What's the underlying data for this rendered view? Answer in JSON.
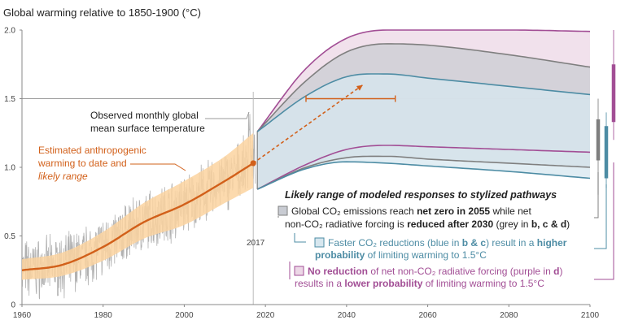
{
  "chart_data": {
    "type": "line",
    "title": "Global warming relative to 1850-1900 (°C)",
    "xlim": [
      1960,
      2100
    ],
    "ylim": [
      0,
      2.0
    ],
    "x_ticks": [
      "1960",
      "1980",
      "2000",
      "2020",
      "2040",
      "2060",
      "2080",
      "2100"
    ],
    "y_ticks": [
      "0",
      "0.5",
      "1.0",
      "1.5",
      "2.0"
    ],
    "reference_line_y": 1.5,
    "marker_year_label": "2017",
    "annotations": {
      "observed": [
        "Observed monthly global",
        "mean surface temperature"
      ],
      "estimated": [
        "Estimated anthropogenic",
        "warming to date and",
        "likely range"
      ],
      "legend_title": "Likely range of modeled responses to stylized pathways",
      "grey_line1_a": "Global CO₂ emissions reach ",
      "grey_line1_b": "net zero in 2055",
      "grey_line1_c": " while net",
      "grey_line2_a": "non-CO₂ radiative forcing is ",
      "grey_line2_b": "reduced after 2030",
      "grey_line2_c": " (grey in ",
      "grey_line2_d": "b, c & d",
      "grey_line2_e": ")",
      "blue_line1_a": "Faster CO₂ reductions (blue in ",
      "blue_line1_b": "b & c",
      "blue_line1_c": ") result in a ",
      "blue_line1_d": "higher",
      "blue_line2_a": "probability",
      "blue_line2_b": " of limiting warming to 1.5°C",
      "purple_line1_a": "No reduction",
      "purple_line1_b": " of net non-CO₂ radiative forcing (purple in ",
      "purple_line1_c": "d",
      "purple_line1_d": ")",
      "purple_line2_a": "results in a ",
      "purple_line2_b": "lower probability",
      "purple_line2_c": " of limiting warming to 1.5°C"
    },
    "series": [
      {
        "key": "estimated",
        "x": [
          1960,
          1970,
          1980,
          1990,
          2000,
          2010,
          2017
        ],
        "y": [
          0.25,
          0.29,
          0.42,
          0.6,
          0.73,
          0.9,
          1.03
        ],
        "lower": [
          0.18,
          0.21,
          0.32,
          0.48,
          0.58,
          0.74,
          0.85
        ],
        "upper": [
          0.33,
          0.38,
          0.53,
          0.74,
          0.9,
          1.08,
          1.25
        ]
      },
      {
        "key": "grey",
        "x": [
          2018,
          2030,
          2040,
          2050,
          2060,
          2080,
          2100
        ],
        "lower": [
          0.84,
          1.0,
          1.07,
          1.08,
          1.06,
          1.03,
          1.0
        ],
        "upper": [
          1.26,
          1.63,
          1.84,
          1.9,
          1.89,
          1.82,
          1.73
        ]
      },
      {
        "key": "blue",
        "x": [
          2018,
          2030,
          2040,
          2050,
          2060,
          2080,
          2100
        ],
        "lower": [
          0.84,
          0.99,
          1.04,
          1.03,
          1.01,
          0.97,
          0.92
        ],
        "upper": [
          1.26,
          1.52,
          1.66,
          1.68,
          1.65,
          1.59,
          1.53
        ]
      },
      {
        "key": "purple",
        "x": [
          2018,
          2030,
          2040,
          2050,
          2060,
          2080,
          2100
        ],
        "lower": [
          0.84,
          1.02,
          1.13,
          1.16,
          1.15,
          1.13,
          1.11
        ],
        "upper": [
          1.26,
          1.72,
          1.94,
          2.0,
          2.0,
          2.0,
          1.99
        ]
      }
    ],
    "dashed_projection": {
      "x": [
        2017,
        2044
      ],
      "y": [
        1.03,
        1.6
      ]
    },
    "range_bar_1p5": {
      "x": [
        2030,
        2052
      ],
      "y": 1.5
    },
    "range_bars_2100": [
      {
        "key": "grey",
        "y": [
          0.8,
          1.5
        ],
        "thick": [
          1.05,
          1.35
        ]
      },
      {
        "key": "blue",
        "y": [
          0.85,
          1.4
        ],
        "thick": [
          0.92,
          1.3
        ]
      },
      {
        "key": "purple",
        "y": [
          1.2,
          2.0
        ],
        "thick": [
          1.33,
          1.75
        ]
      }
    ],
    "colors": {
      "estimated_line": "#d2601a",
      "estimated_band": "#fbd4a0",
      "observed": "#a8a8a8",
      "grey": "#7f7f7f",
      "grey_fill": "#c9ccd3",
      "blue": "#4d8ca4",
      "blue_fill": "#d7e7ef",
      "purple": "#a24e95",
      "purple_fill": "#ecd7e6",
      "text": "#222222"
    }
  }
}
